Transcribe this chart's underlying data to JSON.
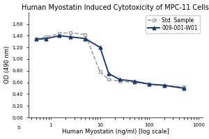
{
  "title": "Human Myostatin Induced Cytotoxicity of MPC-11 Cells",
  "xlabel": "Human Myostatin (ng/ml) [log scale]",
  "ylabel": "OD (490 nm)",
  "ylim": [
    0.0,
    1.8
  ],
  "yticks": [
    0.0,
    0.2,
    0.4,
    0.6,
    0.8,
    1.0,
    1.2,
    1.4,
    1.6
  ],
  "xscale": "log",
  "xlim": [
    0.35,
    1200
  ],
  "xticks": [
    1,
    10,
    100,
    1000
  ],
  "xticklabels": [
    "1",
    "10",
    "100",
    "1000"
  ],
  "series1_label": "009-001-W01",
  "series1_color": "#1e3a6e",
  "series1_x": [
    0.5,
    0.8,
    1.5,
    2.5,
    5.0,
    10.0,
    15.0,
    25.0,
    50.0,
    100.0,
    200.0,
    500.0
  ],
  "series1_y": [
    1.34,
    1.35,
    1.4,
    1.38,
    1.35,
    1.2,
    0.75,
    0.65,
    0.62,
    0.57,
    0.55,
    0.5
  ],
  "series1_marker": "^",
  "series1_markersize": 3.5,
  "series1_linewidth": 1.4,
  "series1_linestyle": "-",
  "series2_label": "Std. Sample",
  "series2_color": "#999999",
  "series2_x": [
    0.5,
    0.8,
    1.5,
    2.5,
    5.0,
    10.0,
    15.0,
    25.0,
    50.0,
    100.0,
    200.0,
    500.0
  ],
  "series2_y": [
    1.34,
    1.38,
    1.44,
    1.45,
    1.42,
    0.78,
    0.65,
    0.62,
    0.6,
    0.57,
    0.55,
    0.52
  ],
  "series2_marker": "s",
  "series2_markersize": 3.0,
  "series2_linewidth": 1.1,
  "series2_linestyle": "--",
  "legend_loc": "upper right",
  "legend_fontsize": 5.5,
  "title_fontsize": 7,
  "axis_fontsize": 6,
  "tick_fontsize": 5,
  "bg_color": "#ffffff"
}
